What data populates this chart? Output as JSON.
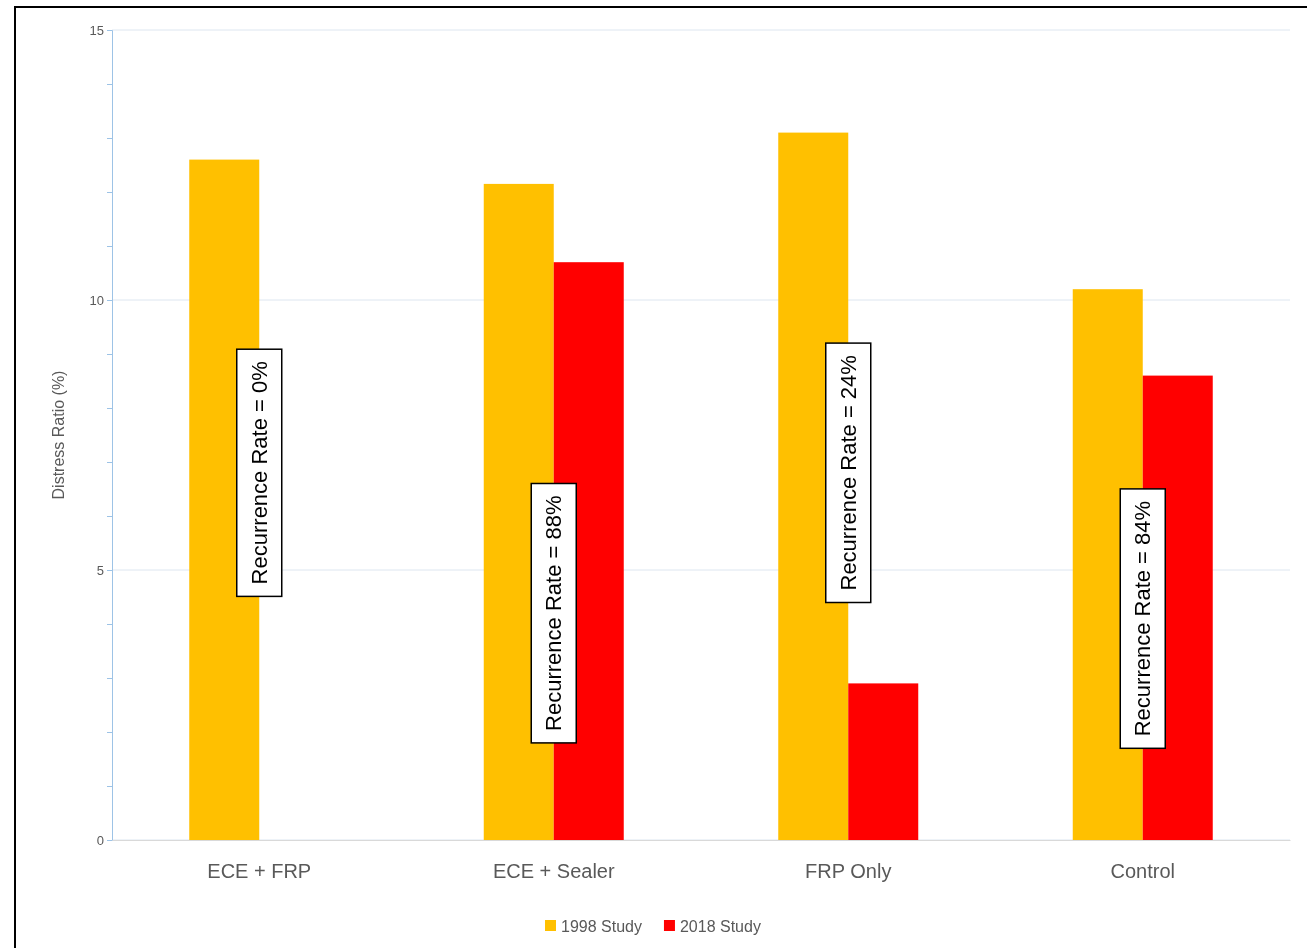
{
  "chart_data": {
    "type": "bar",
    "ylabel": "Distress Ratio (%)",
    "categories": [
      "ECE + FRP",
      "ECE + Sealer",
      "FRP Only",
      "Control"
    ],
    "series": [
      {
        "name": "1998 Study",
        "color": "#ffc000",
        "values": [
          12.6,
          12.15,
          13.1,
          10.2
        ]
      },
      {
        "name": "2018 Study",
        "color": "#ff0000",
        "values": [
          0,
          10.7,
          2.9,
          8.6
        ]
      }
    ],
    "ylim": [
      0,
      15
    ],
    "yticks": [
      0,
      {
        "value": 1,
        "label": null
      },
      {
        "value": 2,
        "label": null
      },
      {
        "value": 3,
        "label": null
      },
      {
        "value": 4,
        "label": null
      },
      5,
      {
        "value": 6,
        "label": null
      },
      {
        "value": 7,
        "label": null
      },
      {
        "value": 8,
        "label": null
      },
      {
        "value": 9,
        "label": null
      },
      10,
      {
        "value": 11,
        "label": null
      },
      {
        "value": 12,
        "label": null
      },
      {
        "value": 13,
        "label": null
      },
      {
        "value": 14,
        "label": null
      },
      15
    ],
    "grid": "y",
    "legend": "bottom",
    "annotations": [
      {
        "text": "Recurrence Rate = 0%",
        "x": "ECE + FRP",
        "y": 6.8
      },
      {
        "text": "Recurrence Rate = 88%",
        "x": "ECE + Sealer",
        "y": 4.2
      },
      {
        "text": "Recurrence Rate = 24%",
        "x": "FRP Only",
        "y": 6.8
      },
      {
        "text": "Recurrence Rate = 84%",
        "x": "Control",
        "y": 4.1
      }
    ]
  }
}
